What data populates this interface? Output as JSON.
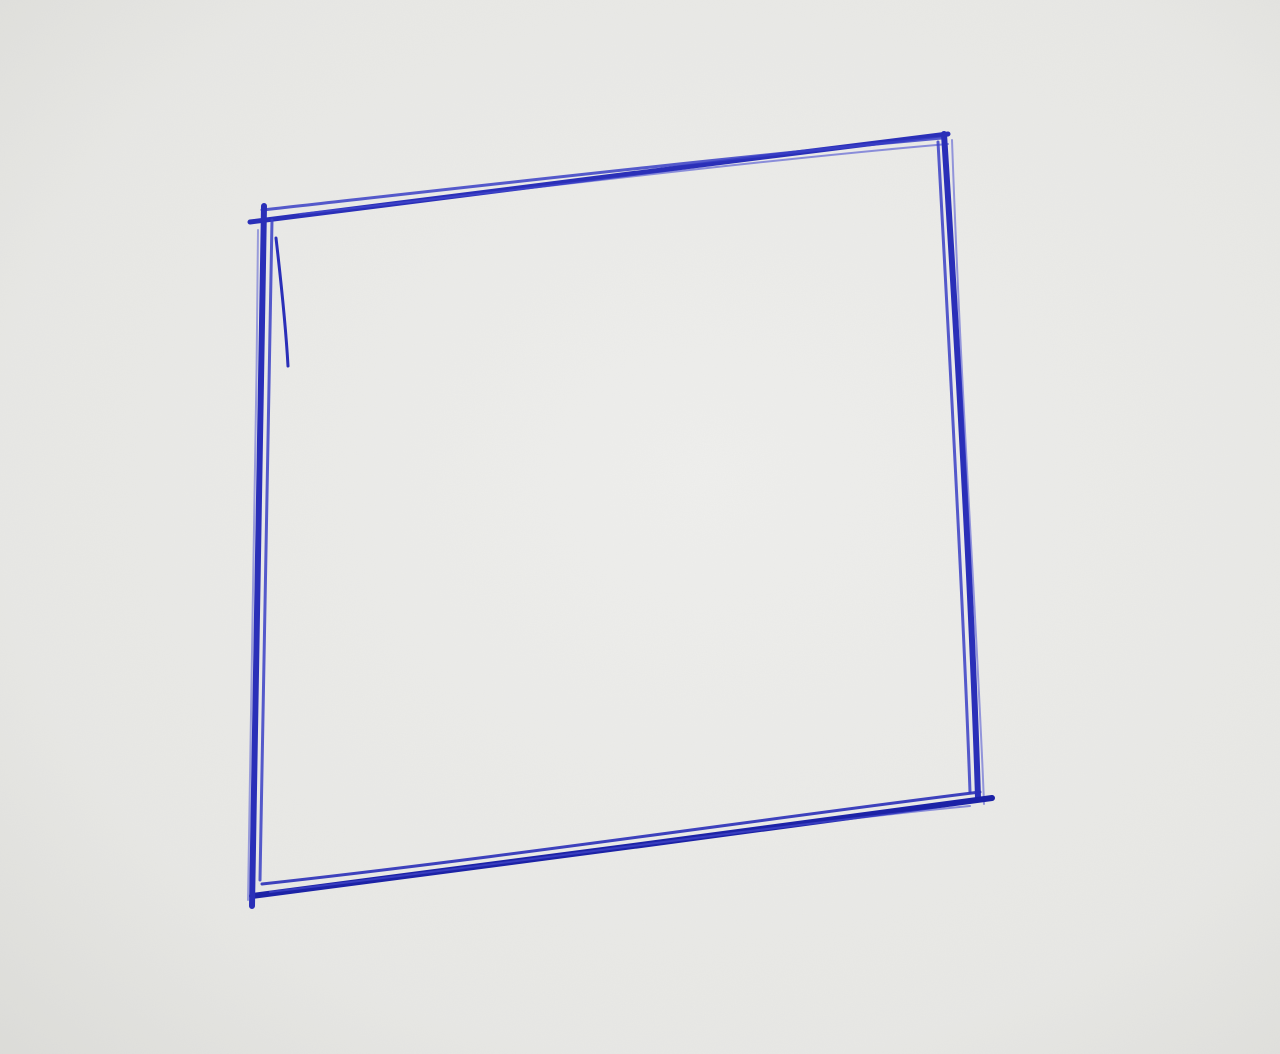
{
  "scene": {
    "subject": "hand-drawn-square",
    "medium": "ballpoint-pen",
    "surface": "paper",
    "colors": {
      "paper_light": "#eeeeec",
      "paper_mid": "#e6e6e3",
      "paper_shadow": "#d6d6d2",
      "ink": "#2a2fb8",
      "ink_dark": "#1c22a6",
      "ink_light": "#4a4fd0"
    }
  }
}
